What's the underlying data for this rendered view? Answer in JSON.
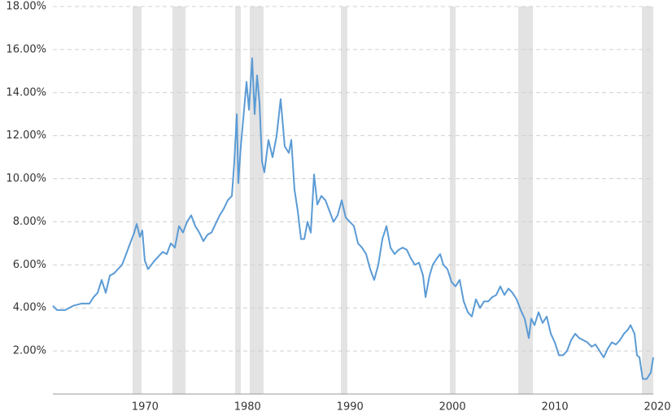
{
  "chart_data": {
    "type": "line",
    "color": "#5b9bd5",
    "band_color": "#e3e3e3",
    "grid": true,
    "xlim": [
      1961,
      2019.6
    ],
    "ylim": [
      0,
      18
    ],
    "xticks": [
      1970,
      1980,
      1990,
      2000,
      2010,
      2020
    ],
    "yticks": [
      {
        "value": 2,
        "label": "2.00%"
      },
      {
        "value": 4,
        "label": "4.00%"
      },
      {
        "value": 6,
        "label": "6.00%"
      },
      {
        "value": 8,
        "label": "8.00%"
      },
      {
        "value": 10,
        "label": "10.00%"
      },
      {
        "value": 12,
        "label": "12.00%"
      },
      {
        "value": 14,
        "label": "14.00%"
      },
      {
        "value": 16,
        "label": "16.00%"
      },
      {
        "value": 18,
        "label": "18.00%"
      }
    ],
    "recessions": [
      [
        1968.78,
        1969.65
      ],
      [
        1972.67,
        1973.94
      ],
      [
        1978.79,
        1979.34
      ],
      [
        1980.21,
        1981.56
      ],
      [
        1989.11,
        1989.74
      ],
      [
        1999.75,
        2000.3
      ],
      [
        2006.42,
        2007.85
      ],
      [
        2018.49,
        2019.6
      ]
    ],
    "x": [
      1961.0,
      1961.4,
      1962.19,
      1962.99,
      1963.78,
      1964.57,
      1964.97,
      1965.37,
      1965.76,
      1966.16,
      1966.56,
      1966.96,
      1967.35,
      1967.75,
      1968.15,
      1968.54,
      1968.94,
      1969.18,
      1969.5,
      1969.73,
      1969.97,
      1970.29,
      1970.61,
      1970.93,
      1971.32,
      1971.72,
      1972.12,
      1972.51,
      1972.91,
      1973.31,
      1973.7,
      1974.1,
      1974.5,
      1974.9,
      1975.29,
      1975.69,
      1976.09,
      1976.48,
      1976.88,
      1977.28,
      1977.67,
      1978.07,
      1978.47,
      1978.71,
      1978.95,
      1979.1,
      1979.34,
      1979.66,
      1979.9,
      1980.14,
      1980.45,
      1980.69,
      1980.93,
      1981.17,
      1981.41,
      1981.64,
      1982.04,
      1982.44,
      1982.84,
      1983.23,
      1983.63,
      1984.03,
      1984.27,
      1984.58,
      1984.9,
      1985.22,
      1985.54,
      1985.85,
      1986.17,
      1986.49,
      1986.81,
      1987.2,
      1987.6,
      1988.0,
      1988.39,
      1988.79,
      1989.19,
      1989.58,
      1989.98,
      1990.38,
      1990.78,
      1991.17,
      1991.57,
      1991.97,
      1992.36,
      1992.76,
      1993.16,
      1993.56,
      1993.95,
      1994.35,
      1994.75,
      1995.14,
      1995.54,
      1995.94,
      1996.33,
      1996.73,
      1997.13,
      1997.37,
      1997.76,
      1998.08,
      1998.48,
      1998.8,
      1999.11,
      1999.51,
      1999.91,
      2000.3,
      2000.7,
      2001.1,
      2001.5,
      2001.89,
      2002.29,
      2002.69,
      2003.08,
      2003.48,
      2003.88,
      2004.27,
      2004.67,
      2005.07,
      2005.47,
      2005.86,
      2006.26,
      2006.66,
      2007.05,
      2007.45,
      2007.69,
      2008.01,
      2008.4,
      2008.8,
      2009.2,
      2009.6,
      2009.99,
      2010.39,
      2010.79,
      2011.18,
      2011.58,
      2011.98,
      2012.37,
      2012.77,
      2013.17,
      2013.57,
      2013.96,
      2014.36,
      2014.76,
      2015.15,
      2015.55,
      2015.95,
      2016.34,
      2016.74,
      2017.14,
      2017.38,
      2017.77,
      2018.01,
      2018.25,
      2018.57,
      2018.96,
      2019.36,
      2019.6
    ],
    "values": [
      4.1,
      3.9,
      3.9,
      4.1,
      4.2,
      4.2,
      4.5,
      4.7,
      5.3,
      4.7,
      5.5,
      5.6,
      5.8,
      6.0,
      6.5,
      7.0,
      7.5,
      7.9,
      7.3,
      7.6,
      6.2,
      5.8,
      6.0,
      6.2,
      6.4,
      6.6,
      6.5,
      7.0,
      6.8,
      7.8,
      7.5,
      8.0,
      8.3,
      7.8,
      7.5,
      7.1,
      7.4,
      7.5,
      7.9,
      8.3,
      8.6,
      9.0,
      9.2,
      10.8,
      13.0,
      9.8,
      11.5,
      13.2,
      14.5,
      13.2,
      15.6,
      13.0,
      14.8,
      13.5,
      10.8,
      10.3,
      11.8,
      11.0,
      12.0,
      13.7,
      11.5,
      11.2,
      11.8,
      9.5,
      8.5,
      7.2,
      7.2,
      8.0,
      7.5,
      10.2,
      8.8,
      9.2,
      9.0,
      8.5,
      8.0,
      8.3,
      9.0,
      8.2,
      8.0,
      7.8,
      7.0,
      6.8,
      6.5,
      5.8,
      5.3,
      6.0,
      7.2,
      7.8,
      6.8,
      6.5,
      6.7,
      6.8,
      6.7,
      6.3,
      6.0,
      6.1,
      5.5,
      4.5,
      5.5,
      6.0,
      6.3,
      6.5,
      6.0,
      5.8,
      5.2,
      5.0,
      5.3,
      4.3,
      3.8,
      3.6,
      4.4,
      4.0,
      4.3,
      4.3,
      4.5,
      4.6,
      5.0,
      4.6,
      4.9,
      4.7,
      4.4,
      3.9,
      3.5,
      2.6,
      3.5,
      3.2,
      3.8,
      3.3,
      3.6,
      2.8,
      2.4,
      1.8,
      1.8,
      2.0,
      2.5,
      2.8,
      2.6,
      2.5,
      2.4,
      2.2,
      2.3,
      2.0,
      1.7,
      2.1,
      2.4,
      2.3,
      2.5,
      2.8,
      3.0,
      3.2,
      2.8,
      1.8,
      1.7,
      0.7,
      0.7,
      1.0,
      1.7
    ]
  }
}
